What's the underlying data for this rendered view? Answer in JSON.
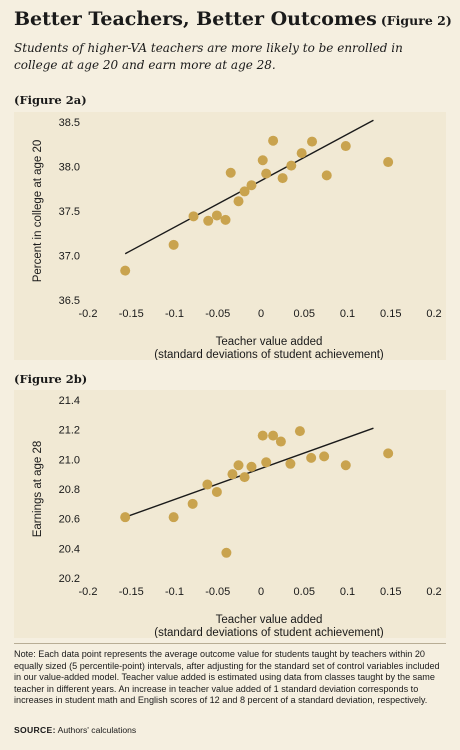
{
  "title": "Better Teachers, Better Outcomes",
  "figure_tag": "(Figure 2)",
  "subtitle": "Students of higher-VA teachers are more likely to be enrolled in college at age 20 and earn more at age 28.",
  "note": "Note: Each data point represents the average outcome value for students taught by teachers within 20 equally sized (5 percentile-point) intervals, after adjusting for the standard set of control variables included in our value-added model. Teacher value added is estimated using data from classes taught by the same teacher in different years. An increase in teacher value added of 1 standard deviation corresponds to increases in student math and English scores of 12 and 8 percent of a standard deviation, respectively.",
  "source_label": "SOURCE:",
  "source_text": "Authors' calculations",
  "colors": {
    "point": "#c9a34e",
    "panel": "#f1e9d4",
    "line": "#1a1a1a"
  },
  "chart_data": [
    {
      "panel_label": "(Figure 2a)",
      "type": "scatter",
      "xlabel_line1": "Teacher value added",
      "xlabel_line2": "(standard deviations of student achievement)",
      "ylabel": "Percent in college at age 20",
      "xlim": [
        -0.2,
        0.2
      ],
      "ylim": [
        36.5,
        38.5
      ],
      "xticks": [
        -0.2,
        -0.15,
        -0.1,
        -0.05,
        0,
        0.05,
        0.1,
        0.15,
        0.2
      ],
      "xtick_labels": [
        "-0.2",
        "-0.15",
        "-0.1",
        "-0.05",
        "0",
        "0.05",
        "0.1",
        "0.15",
        "0.2"
      ],
      "yticks": [
        36.5,
        37.0,
        37.5,
        38.0,
        38.5
      ],
      "ytick_labels": [
        "36.5",
        "37.0",
        "37.5",
        "38.0",
        "38.5"
      ],
      "points": [
        {
          "x": -0.157,
          "y": 36.83
        },
        {
          "x": -0.101,
          "y": 37.12
        },
        {
          "x": -0.078,
          "y": 37.44
        },
        {
          "x": -0.061,
          "y": 37.39
        },
        {
          "x": -0.051,
          "y": 37.45
        },
        {
          "x": -0.041,
          "y": 37.4
        },
        {
          "x": -0.035,
          "y": 37.93
        },
        {
          "x": -0.026,
          "y": 37.61
        },
        {
          "x": -0.019,
          "y": 37.72
        },
        {
          "x": -0.011,
          "y": 37.79
        },
        {
          "x": 0.002,
          "y": 38.07
        },
        {
          "x": 0.006,
          "y": 37.92
        },
        {
          "x": 0.014,
          "y": 38.29
        },
        {
          "x": 0.025,
          "y": 37.87
        },
        {
          "x": 0.035,
          "y": 38.01
        },
        {
          "x": 0.047,
          "y": 38.15
        },
        {
          "x": 0.059,
          "y": 38.28
        },
        {
          "x": 0.076,
          "y": 37.9
        },
        {
          "x": 0.098,
          "y": 38.23
        },
        {
          "x": 0.147,
          "y": 38.05
        }
      ],
      "trend": {
        "x": [
          -0.157,
          0.13
        ],
        "y": [
          37.02,
          38.52
        ]
      }
    },
    {
      "panel_label": "(Figure 2b)",
      "type": "scatter",
      "xlabel_line1": "Teacher value added",
      "xlabel_line2": "(standard deviations of student achievement)",
      "ylabel": "Earnings at age 28",
      "xlim": [
        -0.2,
        0.2
      ],
      "ylim": [
        20.2,
        21.4
      ],
      "xticks": [
        -0.2,
        -0.15,
        -0.1,
        -0.05,
        0,
        0.05,
        0.1,
        0.15,
        0.2
      ],
      "xtick_labels": [
        "-0.2",
        "-0.15",
        "-0.1",
        "-0.05",
        "0",
        "0.05",
        "0.1",
        "0.15",
        "0.2"
      ],
      "yticks": [
        20.2,
        20.4,
        20.6,
        20.8,
        21.0,
        21.2,
        21.4
      ],
      "ytick_labels": [
        "20.2",
        "20.4",
        "20.6",
        "20.8",
        "21.0",
        "21.2",
        "21.4"
      ],
      "points": [
        {
          "x": -0.157,
          "y": 20.61
        },
        {
          "x": -0.101,
          "y": 20.61
        },
        {
          "x": -0.079,
          "y": 20.7
        },
        {
          "x": -0.062,
          "y": 20.83
        },
        {
          "x": -0.051,
          "y": 20.78
        },
        {
          "x": -0.04,
          "y": 20.37
        },
        {
          "x": -0.033,
          "y": 20.9
        },
        {
          "x": -0.026,
          "y": 20.96
        },
        {
          "x": -0.019,
          "y": 20.88
        },
        {
          "x": -0.011,
          "y": 20.95
        },
        {
          "x": 0.002,
          "y": 21.16
        },
        {
          "x": 0.006,
          "y": 20.98
        },
        {
          "x": 0.014,
          "y": 21.16
        },
        {
          "x": 0.023,
          "y": 21.12
        },
        {
          "x": 0.034,
          "y": 20.97
        },
        {
          "x": 0.045,
          "y": 21.19
        },
        {
          "x": 0.058,
          "y": 21.01
        },
        {
          "x": 0.073,
          "y": 21.02
        },
        {
          "x": 0.098,
          "y": 20.96
        },
        {
          "x": 0.147,
          "y": 21.04
        }
      ],
      "trend": {
        "x": [
          -0.157,
          0.13
        ],
        "y": [
          20.61,
          21.21
        ]
      }
    }
  ]
}
